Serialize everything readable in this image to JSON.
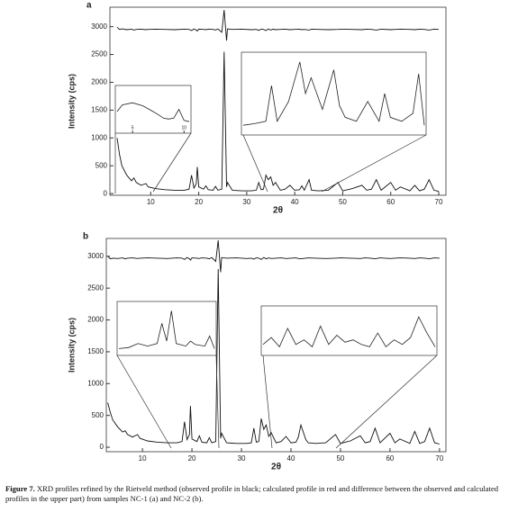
{
  "chart_data": [
    {
      "type": "line",
      "panel_label": "a",
      "xlabel": "2θ",
      "ylabel": "Intensity (cps)",
      "xlim": [
        1.5,
        71.5
      ],
      "xticks": [
        10,
        20,
        30,
        40,
        50,
        60,
        70
      ],
      "ylim": [
        -30,
        3350
      ],
      "yticks": [
        0,
        500,
        1000,
        1500,
        2000,
        2500,
        3000
      ],
      "x": [
        3,
        3.5,
        4,
        5,
        6,
        6.5,
        7,
        8,
        9,
        9.5,
        11,
        13,
        15,
        17,
        18,
        18.5,
        19,
        19.5,
        19.7,
        20,
        21,
        21.5,
        22,
        23,
        23.5,
        24,
        24.8,
        25.3,
        25.8,
        26,
        27,
        29,
        31,
        32,
        32.5,
        33,
        33.5,
        34,
        34.5,
        35,
        35.5,
        36,
        37,
        38,
        39,
        40,
        41,
        41.5,
        42,
        43,
        43.5,
        45,
        47,
        49,
        50,
        52,
        54,
        55,
        56,
        57,
        58,
        60,
        61,
        62,
        64,
        65,
        66,
        67,
        68,
        69,
        70
      ],
      "series": [
        {
          "color": "#111111",
          "values": [
            1000,
            700,
            500,
            330,
            230,
            280,
            200,
            150,
            180,
            120,
            90,
            70,
            60,
            60,
            80,
            330,
            100,
            180,
            480,
            120,
            80,
            140,
            70,
            60,
            130,
            60,
            80,
            2550,
            120,
            200,
            60,
            50,
            50,
            60,
            200,
            70,
            80,
            330,
            250,
            300,
            150,
            200,
            60,
            80,
            150,
            60,
            70,
            140,
            60,
            250,
            60,
            50,
            60,
            200,
            50,
            90,
            150,
            60,
            80,
            250,
            60,
            200,
            60,
            120,
            50,
            150,
            50,
            80,
            250,
            60,
            40
          ]
        },
        {
          "color": "#111111",
          "values": [
            2990,
            2950,
            2960,
            2945,
            2955,
            2940,
            2950,
            2955,
            2945,
            2950,
            2955,
            2950,
            2945,
            2955,
            2950,
            2930,
            2960,
            2940,
            2920,
            2955,
            2950,
            2945,
            2955,
            2950,
            2940,
            2960,
            2900,
            3300,
            2750,
            2960,
            2950,
            2955,
            2945,
            2950,
            2935,
            2955,
            2950,
            2930,
            2960,
            2940,
            2955,
            2945,
            2950,
            2955,
            2945,
            2950,
            2955,
            2945,
            2950,
            2940,
            2955,
            2950,
            2945,
            2950,
            2955,
            2950,
            2945,
            2955,
            2950,
            2940,
            2955,
            2945,
            2950,
            2955,
            2950,
            2945,
            2955,
            2950,
            2940,
            2955,
            2950
          ]
        }
      ],
      "insets": [
        {
          "xlim": [
            3.5,
            10.5
          ],
          "ylim": [
            0,
            100
          ],
          "xticks": [
            5,
            10
          ],
          "x": [
            3.5,
            4,
            5,
            6,
            7,
            7.5,
            8,
            8.5,
            9,
            9.5,
            10,
            10.5
          ],
          "values": [
            45,
            60,
            65,
            58,
            45,
            38,
            30,
            28,
            30,
            50,
            25,
            22
          ]
        },
        {
          "xlim": [
            30,
            46
          ],
          "ylim": [
            0,
            100
          ],
          "x": [
            30,
            31,
            32,
            32.5,
            33,
            34,
            35,
            35.5,
            36,
            37,
            38,
            38.5,
            39,
            40,
            41,
            42,
            42.5,
            43,
            44,
            45,
            45.5,
            46
          ],
          "values": [
            10,
            12,
            15,
            60,
            15,
            40,
            90,
            50,
            70,
            30,
            80,
            35,
            20,
            15,
            40,
            15,
            50,
            20,
            15,
            25,
            75,
            10
          ]
        }
      ]
    },
    {
      "type": "line",
      "panel_label": "b",
      "xlabel": "2θ",
      "ylabel": "Intensity (cps)",
      "xlim": [
        2.7,
        71.3
      ],
      "xticks": [
        10,
        20,
        30,
        40,
        50,
        60,
        70
      ],
      "ylim": [
        -70,
        3280
      ],
      "yticks": [
        0,
        500,
        1000,
        1500,
        2000,
        2500,
        3000
      ],
      "x": [
        3,
        3.5,
        4,
        5,
        6,
        6.5,
        7,
        8,
        9,
        9.5,
        11,
        13,
        15,
        17,
        18,
        18.5,
        19,
        19.5,
        19.7,
        20,
        21,
        21.5,
        22,
        23,
        23.5,
        24,
        24.8,
        25.3,
        25.8,
        26,
        27,
        29,
        31,
        32,
        32.5,
        33,
        33.5,
        34,
        34.5,
        35,
        35.5,
        36,
        37,
        38,
        39,
        40,
        41,
        41.5,
        42,
        43,
        43.5,
        45,
        47,
        49,
        50,
        52,
        54,
        55,
        56,
        57,
        58,
        60,
        61,
        62,
        64,
        65,
        66,
        67,
        68,
        69,
        70
      ],
      "series": [
        {
          "color": "#111111",
          "values": [
            700,
            550,
            430,
            320,
            240,
            260,
            200,
            160,
            200,
            140,
            100,
            80,
            70,
            70,
            90,
            400,
            120,
            200,
            650,
            130,
            90,
            180,
            80,
            70,
            150,
            70,
            90,
            2800,
            140,
            220,
            70,
            60,
            60,
            70,
            300,
            80,
            90,
            450,
            280,
            350,
            170,
            230,
            70,
            90,
            170,
            70,
            80,
            160,
            350,
            120,
            70,
            60,
            70,
            200,
            60,
            100,
            180,
            70,
            90,
            300,
            70,
            220,
            70,
            130,
            60,
            250,
            60,
            90,
            300,
            70,
            50
          ]
        },
        {
          "color": "#111111",
          "values": [
            3000,
            2960,
            2970,
            2965,
            2975,
            2960,
            2970,
            2975,
            2965,
            2970,
            2975,
            2970,
            2965,
            2975,
            2970,
            2950,
            2980,
            2960,
            2940,
            2975,
            2970,
            2965,
            2975,
            2970,
            2960,
            2980,
            2920,
            3250,
            2750,
            2980,
            2970,
            2975,
            2965,
            2970,
            2955,
            2975,
            2970,
            2950,
            2980,
            2960,
            2975,
            2965,
            2970,
            2975,
            2965,
            2970,
            2975,
            2965,
            2960,
            2970,
            2975,
            2970,
            2965,
            2970,
            2975,
            2970,
            2965,
            2975,
            2970,
            2960,
            2975,
            2965,
            2970,
            2975,
            2970,
            2965,
            2975,
            2970,
            2960,
            2975,
            2970
          ]
        }
      ],
      "insets": [
        {
          "xlim": [
            14,
            24
          ],
          "ylim": [
            0,
            100
          ],
          "x": [
            14,
            15,
            16,
            17,
            18,
            18.5,
            19,
            19.5,
            20,
            21,
            21.5,
            22,
            23,
            23.5,
            24
          ],
          "values": [
            10,
            12,
            20,
            15,
            20,
            60,
            25,
            85,
            20,
            15,
            25,
            18,
            15,
            35,
            10
          ]
        },
        {
          "xlim": [
            46,
            67
          ],
          "ylim": [
            0,
            100
          ],
          "x": [
            46,
            47,
            48,
            49,
            50,
            51,
            52,
            53,
            54,
            55,
            56,
            57,
            58,
            59,
            60,
            61,
            62,
            63,
            64,
            65,
            66,
            67
          ],
          "values": [
            20,
            35,
            15,
            55,
            20,
            30,
            15,
            60,
            20,
            40,
            25,
            30,
            20,
            15,
            45,
            15,
            30,
            20,
            35,
            80,
            45,
            15
          ]
        }
      ]
    }
  ],
  "caption": {
    "label": "Figure 7.",
    "text": "XRD profiles refined by the Rietveld method (observed profile in black; calculated profile in red and difference between the observed and calculated profiles in the upper part) from samples NC-1 (a) and NC-2 (b)."
  }
}
